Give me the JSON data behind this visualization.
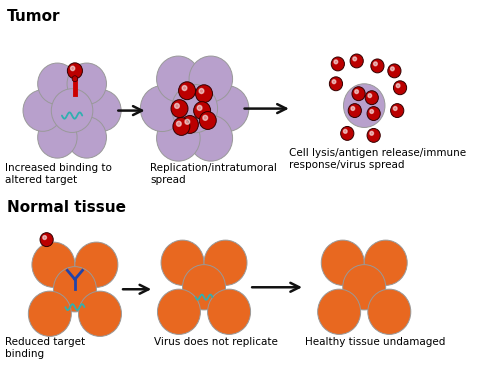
{
  "bg_color": "#ffffff",
  "tumor_cell_color": "#b8a0cc",
  "tumor_cell_edge": "#999999",
  "normal_cell_color": "#e86820",
  "normal_cell_edge": "#999999",
  "virus_color": "#bb0000",
  "virus_edge": "#330000",
  "rna_color": "#30b0b0",
  "receptor_color": "#2244aa",
  "stem_color": "#cc0000",
  "arrow_color": "#111111",
  "title_tumor": "Tumor",
  "title_normal": "Normal tissue",
  "label1": "Increased binding to\naltered target",
  "label2": "Replication/intratumoral\nspread",
  "label3": "Cell lysis/antigen release/immune\nresponse/virus spread",
  "label4": "Reduced target\nbinding",
  "label5": "Virus does not replicate",
  "label6": "Healthy tissue undamaged",
  "figsize": [
    5.0,
    3.78
  ],
  "dpi": 100
}
